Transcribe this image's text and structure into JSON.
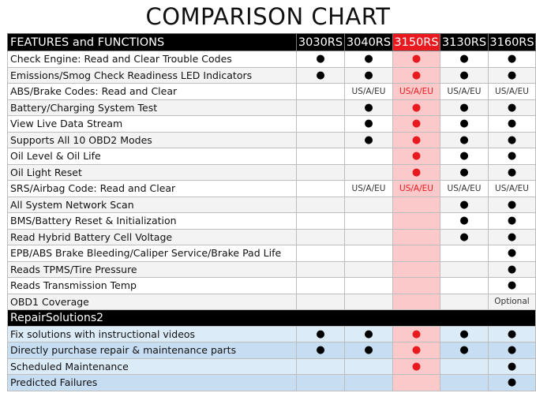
{
  "title": "COMPARISON CHART",
  "header": {
    "label": "FEATURES and FUNCTIONS",
    "models": [
      "3030RS",
      "3040RS",
      "3150RS",
      "3130RS",
      "3160RS"
    ]
  },
  "sections": [
    {
      "rows": [
        {
          "feature": "Check Engine: Read and Clear Trouble Codes",
          "cells": [
            "●",
            "●",
            "●",
            "●",
            "●"
          ]
        },
        {
          "feature": "Emissions/Smog Check Readiness LED Indicators",
          "cells": [
            "●",
            "●",
            "●",
            "●",
            "●"
          ]
        },
        {
          "feature": "ABS/Brake Codes: Read and Clear",
          "cells": [
            null,
            "US/A/EU",
            "US/A/EU",
            "US/A/EU",
            "US/A/EU"
          ]
        },
        {
          "feature": "Battery/Charging System Test",
          "cells": [
            null,
            "●",
            "●",
            "●",
            "●"
          ]
        },
        {
          "feature": "View Live Data Stream",
          "cells": [
            null,
            "●",
            "●",
            "●",
            "●"
          ]
        },
        {
          "feature": "Supports All 10 OBD2 Modes",
          "cells": [
            null,
            "●",
            "●",
            "●",
            "●"
          ]
        },
        {
          "feature": "Oil Level & Oil Life",
          "cells": [
            null,
            null,
            "●",
            "●",
            "●"
          ]
        },
        {
          "feature": "Oil Light Reset",
          "cells": [
            null,
            null,
            "●",
            "●",
            "●"
          ]
        },
        {
          "feature": "SRS/Airbag Code: Read and Clear",
          "cells": [
            null,
            "US/A/EU",
            "US/A/EU",
            "US/A/EU",
            "US/A/EU"
          ]
        },
        {
          "feature": "All System Network Scan",
          "cells": [
            null,
            null,
            null,
            "●",
            "●"
          ]
        },
        {
          "feature": "BMS/Battery Reset & Initialization",
          "cells": [
            null,
            null,
            null,
            "●",
            "●"
          ]
        },
        {
          "feature": "Read Hybrid Battery Cell Voltage",
          "cells": [
            null,
            null,
            null,
            "●",
            "●"
          ]
        },
        {
          "feature": "EPB/ABS Brake Bleeding/Caliper Service/Brake Pad Life",
          "cells": [
            null,
            null,
            null,
            null,
            "●"
          ]
        },
        {
          "feature": "Reads TPMS/Tire Pressure",
          "cells": [
            null,
            null,
            null,
            null,
            "●"
          ]
        },
        {
          "feature": "Reads Transmission Temp",
          "cells": [
            null,
            null,
            null,
            null,
            "●"
          ]
        },
        {
          "feature": "OBD1 Coverage",
          "cells": [
            null,
            null,
            null,
            null,
            "Optional"
          ]
        }
      ]
    },
    {
      "title": "RepairSolutions2",
      "rows": [
        {
          "feature": "Fix solutions with instructional videos",
          "cells": [
            "●",
            "●",
            "●",
            "●",
            "●"
          ]
        },
        {
          "feature": "Directly purchase repair & maintenance parts",
          "cells": [
            "●",
            "●",
            "●",
            "●",
            "●"
          ]
        },
        {
          "feature": "Scheduled Maintenance",
          "cells": [
            null,
            null,
            "●",
            null,
            "●"
          ]
        },
        {
          "feature": "Predicted Failures",
          "cells": [
            null,
            null,
            null,
            null,
            "●"
          ]
        }
      ]
    }
  ]
}
